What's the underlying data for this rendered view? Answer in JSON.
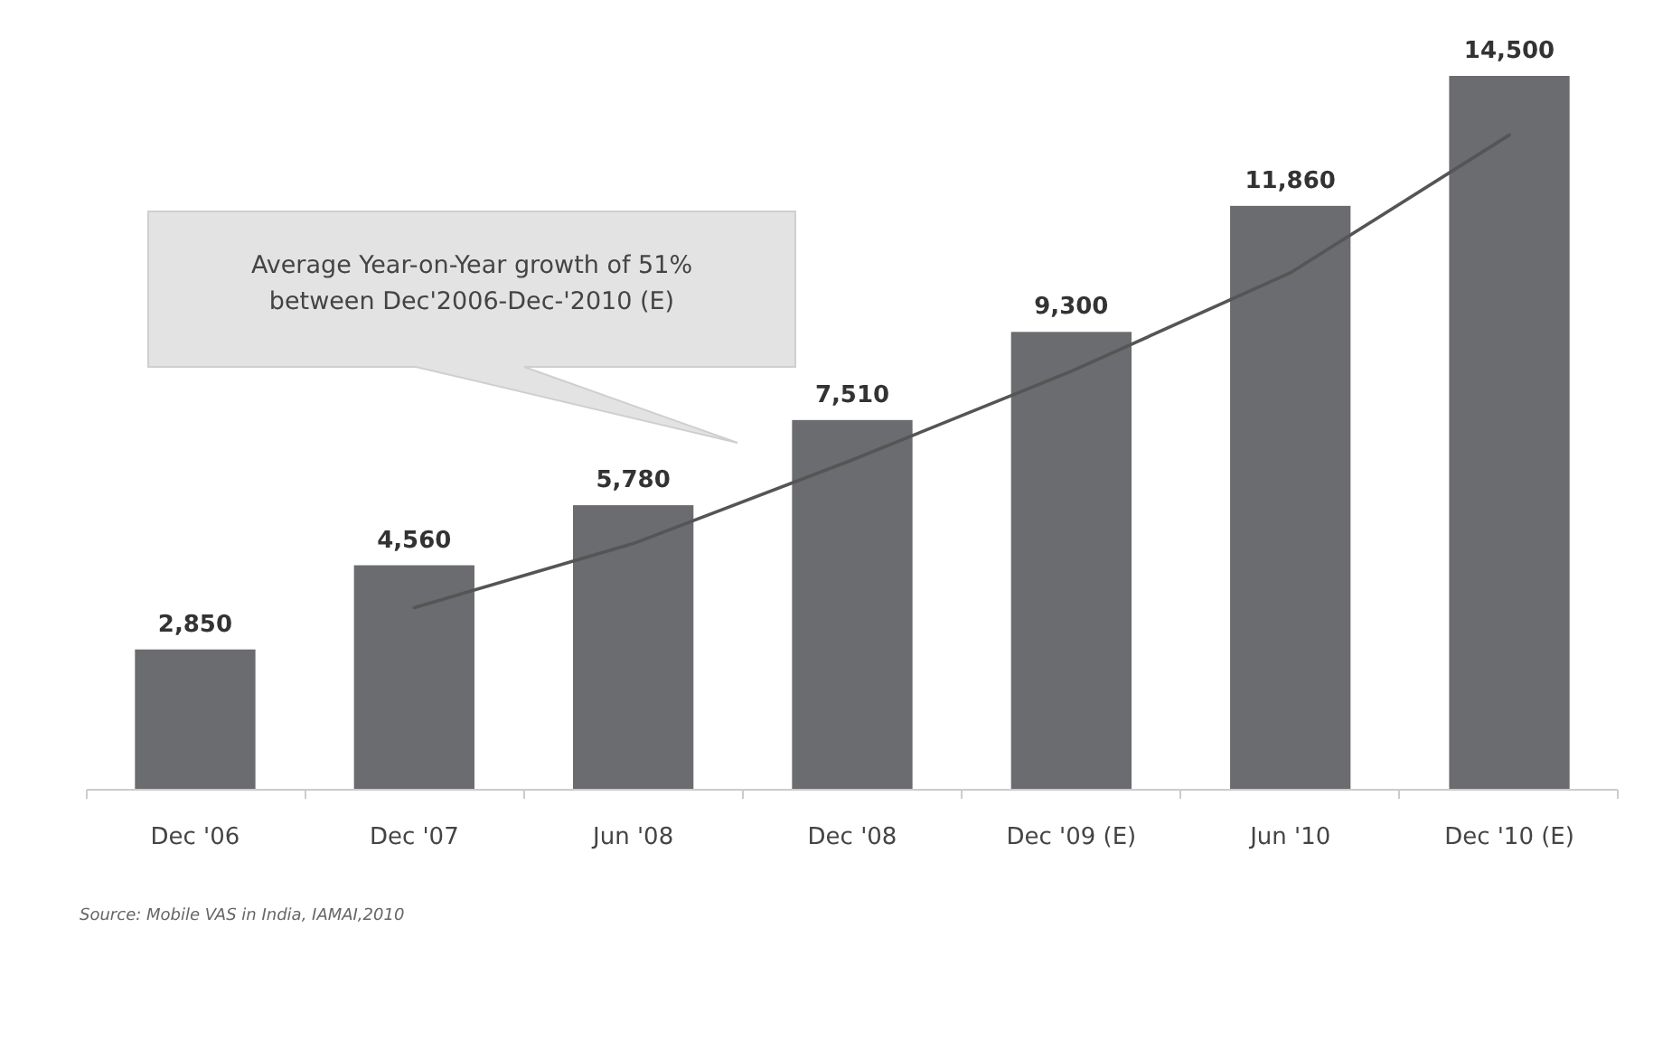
{
  "chart_data": {
    "type": "bar",
    "categories": [
      "Dec '06",
      "Dec '07",
      "Jun '08",
      "Dec '08",
      "Dec '09 (E)",
      "Jun '10",
      "Dec '10 (E)"
    ],
    "series": [
      {
        "color": "#6b6c6f",
        "values": [
          2850,
          4560,
          5780,
          7510,
          9300,
          11860,
          14500
        ],
        "value_labels": [
          "2,850",
          "4,560",
          "5,780",
          "7,510",
          "9,300",
          "11,860",
          "14,500"
        ]
      },
      {
        "type": "line",
        "color": "#555555",
        "x": [
          "Dec '07",
          "Jun '08",
          "Dec '08",
          "Dec '09 (E)",
          "Jun '10",
          "Dec '10 (E)"
        ],
        "values": [
          3700,
          5000,
          6700,
          8500,
          10500,
          13300
        ]
      }
    ],
    "tick_labels": "x",
    "annotations": [
      "Average Year-on-Year growth of 51% between Dec'2006-Dec-'2010 (E)",
      "Source: Mobile VAS in India, IAMAI,2010"
    ]
  }
}
